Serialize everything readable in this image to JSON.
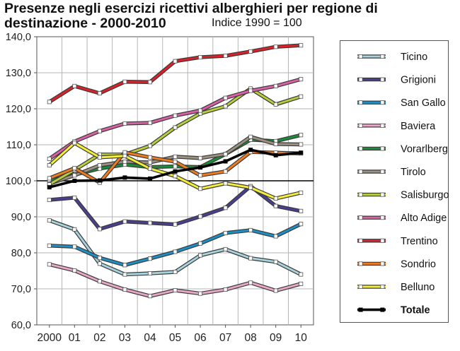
{
  "title": {
    "line1": "Presenze negli esercizi ricettivi alberghieri per regione di",
    "line2": "destinazione - 2000-2010"
  },
  "subtitle": "Indice 1990 = 100",
  "chart_data": {
    "type": "line",
    "title": "Presenze negli esercizi ricettivi alberghieri per regione di destinazione - 2000-2010",
    "subtitle": "Indice 1990 = 100",
    "xlabel": "",
    "ylabel": "",
    "categories": [
      "2000",
      "01",
      "02",
      "03",
      "04",
      "05",
      "06",
      "07",
      "08",
      "09",
      "10"
    ],
    "ylim": [
      60,
      140
    ],
    "yticks": [
      "60,0",
      "70,0",
      "80,0",
      "90,0",
      "100,0",
      "110,0",
      "120,0",
      "130,0",
      "140,0"
    ],
    "grid": true,
    "legend_position": "right",
    "reference_line": 100,
    "series": [
      {
        "name": "Ticino",
        "color": "#a8d2dc",
        "values": [
          89.0,
          86.5,
          77.0,
          74.0,
          74.3,
          74.7,
          79.3,
          81.0,
          78.5,
          77.5,
          74.0
        ]
      },
      {
        "name": "Grigioni",
        "color": "#4a3f8f",
        "values": [
          94.7,
          95.3,
          86.6,
          88.7,
          88.3,
          87.9,
          90.1,
          92.5,
          98.5,
          93.0,
          91.6
        ]
      },
      {
        "name": "San Gallo",
        "color": "#1e8fc4",
        "values": [
          82.0,
          81.7,
          78.6,
          76.6,
          78.4,
          80.3,
          82.6,
          85.5,
          86.3,
          84.6,
          88.0
        ]
      },
      {
        "name": "Baviera",
        "color": "#e6a8c6",
        "values": [
          76.8,
          75.1,
          72.1,
          69.8,
          68.0,
          69.6,
          68.7,
          69.8,
          71.7,
          69.5,
          71.4
        ]
      },
      {
        "name": "Vorarlberg",
        "color": "#1a8c3c",
        "values": [
          100.0,
          101.7,
          103.4,
          104.5,
          103.8,
          104.0,
          103.8,
          107.4,
          111.4,
          111.0,
          112.7
        ]
      },
      {
        "name": "Tirolo",
        "color": "#9a9180",
        "values": [
          99.2,
          101.5,
          104.3,
          105.3,
          105.1,
          106.7,
          106.3,
          107.4,
          112.2,
          110.2,
          110.1
        ]
      },
      {
        "name": "Salisburgo",
        "color": "#b7cc3e",
        "values": [
          99.0,
          103.0,
          107.3,
          107.3,
          109.7,
          114.8,
          118.7,
          120.7,
          125.6,
          121.2,
          123.4
        ]
      },
      {
        "name": "Alto Adige",
        "color": "#d860a4",
        "values": [
          106.1,
          110.9,
          113.8,
          115.9,
          116.1,
          118.1,
          119.5,
          123.0,
          125.0,
          126.3,
          128.2
        ]
      },
      {
        "name": "Trentino",
        "color": "#d8232a",
        "values": [
          121.9,
          126.3,
          124.3,
          127.5,
          127.4,
          133.2,
          134.3,
          134.7,
          135.9,
          137.2,
          137.6
        ]
      },
      {
        "name": "Sondrio",
        "color": "#ec7b22",
        "values": [
          100.7,
          103.5,
          99.5,
          107.9,
          106.5,
          105.3,
          101.5,
          102.6,
          108.0,
          107.8,
          107.6
        ]
      },
      {
        "name": "Belluno",
        "color": "#f4ee3a",
        "values": [
          104.3,
          110.5,
          106.5,
          106.9,
          103.4,
          101.3,
          97.8,
          99.3,
          98.1,
          95.1,
          96.7
        ]
      },
      {
        "name": "Totale",
        "color": "#000000",
        "values": [
          98.2,
          100.0,
          100.1,
          100.9,
          100.6,
          102.6,
          103.7,
          105.4,
          108.6,
          107.1,
          107.8
        ]
      }
    ]
  }
}
